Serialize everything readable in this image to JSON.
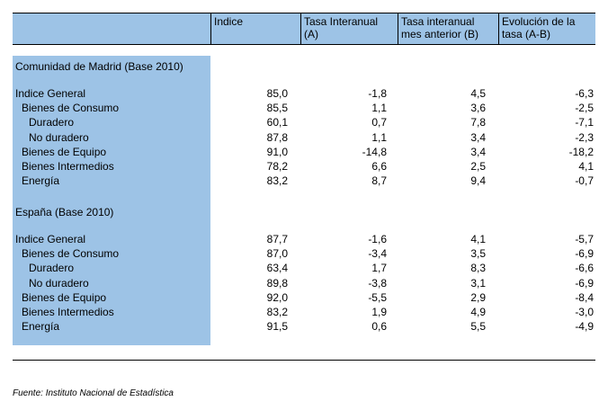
{
  "table": {
    "headers": {
      "indice": "Indice",
      "tasa_interanual": [
        "Tasa Interanual",
        "(A)"
      ],
      "tasa_mes_anterior": [
        "Tasa interanual",
        "mes anterior (B)"
      ],
      "evolucion": [
        "Evolución de la",
        "tasa (A-B)"
      ]
    },
    "sections": [
      {
        "title": "Comunidad de Madrid (Base 2010)",
        "rows": [
          {
            "label": "Indice General",
            "indent": 0,
            "values": [
              "85,0",
              "-1,8",
              "4,5",
              "-6,3"
            ]
          },
          {
            "label": "Bienes de Consumo",
            "indent": 1,
            "values": [
              "85,5",
              "1,1",
              "3,6",
              "-2,5"
            ]
          },
          {
            "label": "Duradero",
            "indent": 2,
            "values": [
              "60,1",
              "0,7",
              "7,8",
              "-7,1"
            ]
          },
          {
            "label": "No duradero",
            "indent": 2,
            "values": [
              "87,8",
              "1,1",
              "3,4",
              "-2,3"
            ]
          },
          {
            "label": "Bienes de Equipo",
            "indent": 1,
            "values": [
              "91,0",
              "-14,8",
              "3,4",
              "-18,2"
            ]
          },
          {
            "label": "Bienes Intermedios",
            "indent": 1,
            "values": [
              "78,2",
              "6,6",
              "2,5",
              "4,1"
            ]
          },
          {
            "label": "Energía",
            "indent": 1,
            "values": [
              "83,2",
              "8,7",
              "9,4",
              "-0,7"
            ]
          }
        ]
      },
      {
        "title": "España (Base 2010)",
        "rows": [
          {
            "label": "Indice General",
            "indent": 0,
            "values": [
              "87,7",
              "-1,6",
              "4,1",
              "-5,7"
            ]
          },
          {
            "label": "Bienes de Consumo",
            "indent": 1,
            "values": [
              "87,0",
              "-3,4",
              "3,5",
              "-6,9"
            ]
          },
          {
            "label": "Duradero",
            "indent": 2,
            "values": [
              "63,4",
              "1,7",
              "8,3",
              "-6,6"
            ]
          },
          {
            "label": "No duradero",
            "indent": 2,
            "values": [
              "89,8",
              "-3,8",
              "3,1",
              "-6,9"
            ]
          },
          {
            "label": "Bienes de Equipo",
            "indent": 1,
            "values": [
              "92,0",
              "-5,5",
              "2,9",
              "-8,4"
            ]
          },
          {
            "label": "Bienes Intermedios",
            "indent": 1,
            "values": [
              "83,2",
              "1,9",
              "4,9",
              "-3,0"
            ]
          },
          {
            "label": "Energía",
            "indent": 1,
            "values": [
              "91,5",
              "0,6",
              "5,5",
              "-4,9"
            ]
          }
        ]
      }
    ]
  },
  "source": "Fuente: Instituto Nacional de Estadística",
  "colors": {
    "header_fill": "#9dc3e6"
  }
}
